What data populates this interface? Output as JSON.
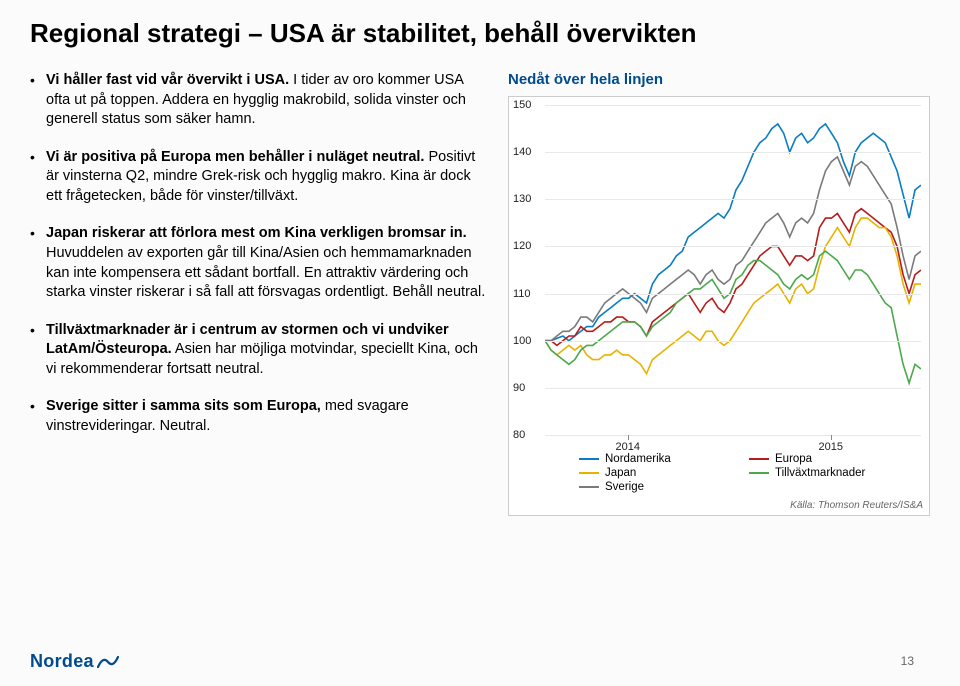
{
  "title": "Regional strategi – USA är stabilitet, behåll övervikten",
  "bullets": [
    {
      "bold": "Vi håller fast vid vår övervikt i USA.",
      "rest": " I tider av oro kommer USA ofta ut på toppen. Addera en hygglig makrobild, solida vinster och generell status som säker hamn."
    },
    {
      "bold": "Vi är positiva på Europa men behåller i nuläget neutral.",
      "rest": " Positivt är vinsterna Q2, mindre Grek-risk och hygglig makro. Kina är dock ett frågetecken, både för vinster/tillväxt."
    },
    {
      "bold": "Japan riskerar att förlora mest om Kina verkligen bromsar in.",
      "rest": " Huvuddelen av exporten går till Kina/Asien och hemmamarknaden kan inte kompensera ett sådant bortfall. En attraktiv värdering och starka vinster riskerar i så fall att försvagas ordentligt. Behåll neutral."
    },
    {
      "bold": "Tillväxtmarknader är i centrum av stormen och vi undviker LatAm/Östeuropa.",
      "rest": " Asien har möjliga motvindar, speciellt Kina, och vi rekommenderar fortsatt neutral."
    },
    {
      "bold": "Sverige sitter i samma sits som Europa,",
      "rest": " med svagare vinstrevideringar. Neutral."
    }
  ],
  "chart": {
    "title": "Nedåt över hela linjen",
    "ylim": [
      80,
      150
    ],
    "ytick_step": 10,
    "x_categories": [
      "2014",
      "2015"
    ],
    "x_positions": [
      0.22,
      0.76
    ],
    "grid_color": "#e8e8e8",
    "background_color": "#ffffff",
    "line_width": 1.6,
    "series": [
      {
        "name": "Nordamerika",
        "color": "#0a7dc2",
        "y": [
          100,
          100,
          100.5,
          101,
          100,
          101,
          102,
          103,
          103,
          105,
          106,
          107,
          108,
          109,
          109,
          110,
          109,
          108,
          112,
          114,
          115,
          116,
          118,
          119,
          122,
          123,
          124,
          125,
          126,
          127,
          126,
          128,
          132,
          134,
          137,
          140,
          142,
          143,
          145,
          146,
          144,
          140,
          143,
          144,
          142,
          143,
          145,
          146,
          144,
          142,
          138,
          135,
          140,
          142,
          143,
          144,
          143,
          142,
          139,
          136,
          131,
          126,
          132,
          133
        ]
      },
      {
        "name": "Europa",
        "color": "#b61c1c",
        "y": [
          100,
          100,
          99,
          100,
          101,
          101,
          103,
          102,
          102,
          103,
          104,
          104,
          105,
          105,
          104,
          104,
          103,
          101,
          104,
          105,
          106,
          107,
          108,
          109,
          110,
          108,
          106,
          108,
          109,
          107,
          106,
          108,
          111,
          112,
          114,
          116,
          118,
          119,
          120,
          120,
          118,
          116,
          118,
          118,
          117,
          118,
          124,
          126,
          126,
          127,
          125,
          123,
          127,
          128,
          127,
          126,
          125,
          124,
          123,
          120,
          114,
          110,
          114,
          115
        ]
      },
      {
        "name": "Japan",
        "color": "#e8b200",
        "y": [
          100,
          98,
          97,
          98,
          99,
          98,
          99,
          97,
          96,
          96,
          97,
          97,
          98,
          97,
          97,
          96,
          95,
          93,
          96,
          97,
          98,
          99,
          100,
          101,
          102,
          101,
          100,
          102,
          102,
          100,
          99,
          100,
          102,
          104,
          106,
          108,
          109,
          110,
          111,
          112,
          110,
          108,
          111,
          112,
          110,
          111,
          116,
          120,
          122,
          124,
          122,
          120,
          124,
          126,
          126,
          125,
          124,
          124,
          122,
          118,
          112,
          108,
          112,
          112
        ]
      },
      {
        "name": "Tillväxtmarknader",
        "color": "#4ba84b",
        "y": [
          100,
          98,
          97,
          96,
          95,
          96,
          98,
          99,
          99,
          100,
          101,
          102,
          103,
          104,
          104,
          104,
          103,
          101,
          103,
          104,
          105,
          106,
          108,
          109,
          110,
          111,
          111,
          112,
          113,
          111,
          109,
          110,
          113,
          114,
          116,
          117,
          117,
          116,
          115,
          114,
          112,
          111,
          113,
          114,
          113,
          114,
          118,
          119,
          118,
          117,
          115,
          113,
          115,
          115,
          114,
          112,
          110,
          108,
          107,
          101,
          95,
          91,
          95,
          94
        ]
      },
      {
        "name": "Sverige",
        "color": "#7a7a7a",
        "y": [
          100,
          100,
          101,
          102,
          102,
          103,
          105,
          105,
          104,
          106,
          108,
          109,
          110,
          111,
          110,
          109,
          108,
          106,
          109,
          110,
          111,
          112,
          113,
          114,
          115,
          114,
          112,
          114,
          115,
          113,
          112,
          113,
          116,
          117,
          119,
          121,
          123,
          125,
          126,
          127,
          125,
          122,
          125,
          126,
          125,
          127,
          132,
          136,
          138,
          139,
          136,
          133,
          137,
          138,
          137,
          135,
          133,
          131,
          129,
          124,
          118,
          113,
          118,
          119
        ]
      }
    ],
    "legend": [
      {
        "label": "Nordamerika",
        "color": "#0a7dc2"
      },
      {
        "label": "Europa",
        "color": "#b61c1c"
      },
      {
        "label": "Japan",
        "color": "#e8b200"
      },
      {
        "label": "Tillväxtmarknader",
        "color": "#4ba84b"
      },
      {
        "label": "Sverige",
        "color": "#7a7a7a"
      }
    ],
    "source": "Källa: Thomson Reuters/IS&A"
  },
  "logo_text": "Nordea",
  "page_number": "13"
}
